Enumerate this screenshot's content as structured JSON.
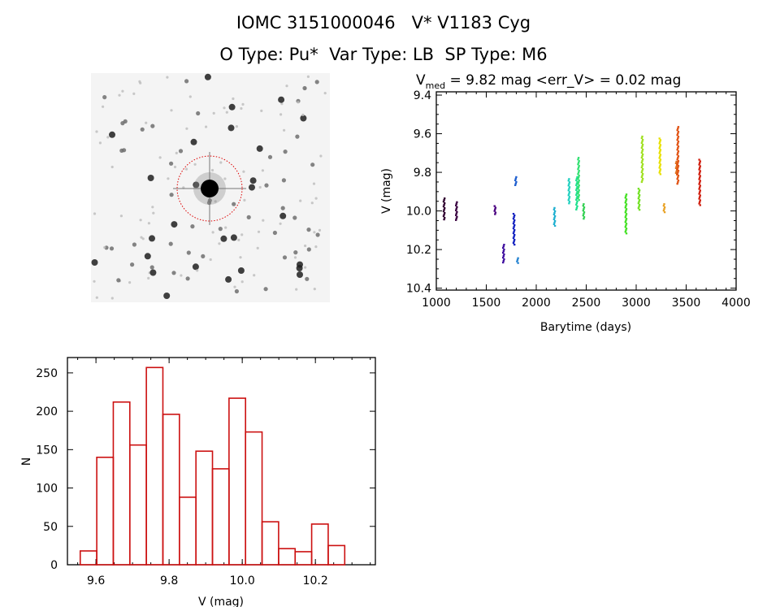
{
  "header": {
    "title": "IOMC 3151000046   V* V1183 Cyg",
    "subtitle": "O Type: Pu*  Var Type: LB  SP Type: M6"
  },
  "image_panel": {
    "circle_color": "#dd0000"
  },
  "chart_data": [
    {
      "type": "scatter",
      "title_prefix": "V",
      "title_sub": "med",
      "title_rest": " = 9.82 mag <err_V> = 0.02 mag",
      "xlabel": "Barytime (days)",
      "ylabel": "V (mag)",
      "xlim": [
        1000,
        4000
      ],
      "ylim": [
        10.41,
        9.383
      ],
      "y_inverted": true,
      "xticks": [
        "1000",
        "1500",
        "2000",
        "2500",
        "3000",
        "3500",
        "4000"
      ],
      "yticks": [
        "9.4",
        "9.6",
        "9.8",
        "10.0",
        "10.2",
        "10.4"
      ],
      "segments": [
        {
          "day": 1073,
          "mag": [
            9.93,
            10.04
          ],
          "color": "#300030"
        },
        {
          "day": 1195,
          "mag": [
            9.95,
            10.05
          ],
          "color": "#380040"
        },
        {
          "day": 1585,
          "mag": [
            9.97,
            10.02
          ],
          "color": "#4a0080"
        },
        {
          "day": 1667,
          "mag": [
            10.17,
            10.27
          ],
          "color": "#4010a0"
        },
        {
          "day": 1772,
          "mag": [
            10.01,
            10.17
          ],
          "color": "#1020c0"
        },
        {
          "day": 1790,
          "mag": [
            9.82,
            9.87
          ],
          "color": "#2060d0"
        },
        {
          "day": 1810,
          "mag": [
            10.24,
            10.27
          ],
          "color": "#2080d0"
        },
        {
          "day": 2177,
          "mag": [
            9.98,
            10.08
          ],
          "color": "#20b0d0"
        },
        {
          "day": 2325,
          "mag": [
            9.83,
            9.96
          ],
          "color": "#20d0c0"
        },
        {
          "day": 2400,
          "mag": [
            9.82,
            9.99
          ],
          "color": "#20e090"
        },
        {
          "day": 2420,
          "mag": [
            9.72,
            9.94
          ],
          "color": "#30e070"
        },
        {
          "day": 2470,
          "mag": [
            9.96,
            10.04
          ],
          "color": "#30d050"
        },
        {
          "day": 2894,
          "mag": [
            9.91,
            10.12
          ],
          "color": "#40e020"
        },
        {
          "day": 3024,
          "mag": [
            9.88,
            9.99
          ],
          "color": "#70e020"
        },
        {
          "day": 3057,
          "mag": [
            9.61,
            9.85
          ],
          "color": "#a0e020"
        },
        {
          "day": 3236,
          "mag": [
            9.62,
            9.81
          ],
          "color": "#e8e000"
        },
        {
          "day": 3276,
          "mag": [
            9.96,
            10.01
          ],
          "color": "#e8a020"
        },
        {
          "day": 3398,
          "mag": [
            9.74,
            9.81
          ],
          "color": "#e07020"
        },
        {
          "day": 3414,
          "mag": [
            9.56,
            9.86
          ],
          "color": "#e05010"
        },
        {
          "day": 3634,
          "mag": [
            9.73,
            9.97
          ],
          "color": "#d02010"
        }
      ]
    },
    {
      "type": "bar",
      "subtype": "histogram",
      "xlabel": "V (mag)",
      "ylabel": "N",
      "xlim": [
        9.522,
        10.364
      ],
      "ylim": [
        0,
        270
      ],
      "xticks": [
        "9.6",
        "9.8",
        "10.0",
        "10.2"
      ],
      "yticks": [
        "0",
        "50",
        "100",
        "150",
        "200",
        "250"
      ],
      "bin_start": 9.557,
      "bin_width": 0.0452,
      "values": [
        18,
        140,
        212,
        156,
        257,
        196,
        88,
        148,
        125,
        217,
        173,
        56,
        21,
        17,
        53,
        25
      ],
      "color": "#cc1111"
    }
  ]
}
